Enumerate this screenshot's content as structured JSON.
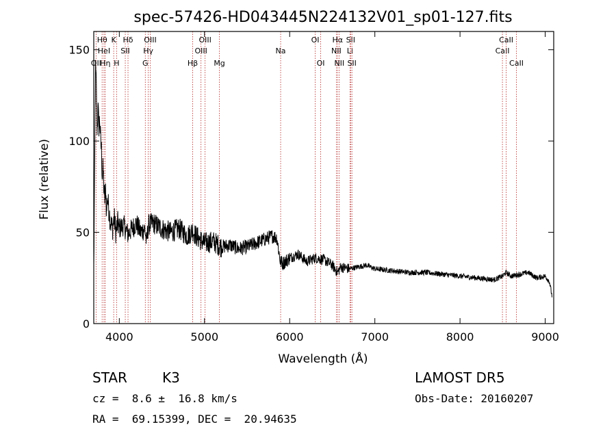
{
  "chart_data": {
    "type": "line",
    "title": "spec-57426-HD043445N224132V01_sp01-127.fits",
    "xlabel": "Wavelength (Å)",
    "ylabel": "Flux (relative)",
    "xlim": [
      3700,
      9100
    ],
    "ylim": [
      0,
      160
    ],
    "xticks": [
      4000,
      5000,
      6000,
      7000,
      8000,
      9000
    ],
    "yticks": [
      0,
      50,
      100,
      150
    ],
    "line_color": "#000000",
    "marker_color": "#b22222",
    "series": [
      {
        "x": [
          3700,
          3710,
          3720,
          3730,
          3740,
          3750,
          3760,
          3770,
          3780,
          3790,
          3800,
          3810,
          3820,
          3830,
          3840,
          3850,
          3860,
          3870,
          3880,
          3890,
          3900,
          3920,
          3940,
          3960,
          3980,
          4000,
          4050,
          4100,
          4150,
          4200,
          4250,
          4300,
          4320,
          4340,
          4400,
          4500,
          4600,
          4700,
          4800,
          4861,
          4900,
          5000,
          5100,
          5200,
          5300,
          5400,
          5500,
          5600,
          5700,
          5800,
          5850,
          5890,
          5920,
          6000,
          6100,
          6200,
          6300,
          6400,
          6500,
          6563,
          6600,
          6700,
          6800,
          6900,
          7000,
          7200,
          7400,
          7600,
          7800,
          8000,
          8200,
          8400,
          8500,
          8540,
          8600,
          8700,
          8800,
          8900,
          9000,
          9050,
          9080
        ],
        "y": [
          30,
          80,
          140,
          130,
          105,
          118,
          108,
          112,
          100,
          95,
          80,
          85,
          72,
          68,
          75,
          60,
          70,
          65,
          62,
          58,
          55,
          52,
          58,
          50,
          55,
          52,
          54,
          49,
          52,
          55,
          50,
          52,
          44,
          54,
          55,
          52,
          50,
          52,
          48,
          51,
          48,
          44,
          45,
          42,
          43,
          41,
          42,
          44,
          46,
          48,
          47,
          34,
          33,
          36,
          38,
          34,
          36,
          35,
          32,
          28,
          31,
          30,
          31,
          32,
          30,
          29,
          28,
          28,
          27,
          26,
          25,
          24,
          26,
          28,
          26,
          27,
          28,
          25,
          26,
          23,
          15
        ]
      }
    ],
    "line_markers": [
      {
        "label": "OII",
        "x": 3727,
        "row": 3
      },
      {
        "label": "Hθ",
        "x": 3798,
        "row": 1
      },
      {
        "label": "HeI",
        "x": 3820,
        "row": 2
      },
      {
        "label": "Hη",
        "x": 3835,
        "row": 3
      },
      {
        "label": "K",
        "x": 3934,
        "row": 1
      },
      {
        "label": "H",
        "x": 3968,
        "row": 3
      },
      {
        "label": "SII",
        "x": 4070,
        "row": 2
      },
      {
        "label": "Hδ",
        "x": 4102,
        "row": 1
      },
      {
        "label": "G",
        "x": 4305,
        "row": 3
      },
      {
        "label": "Hγ",
        "x": 4340,
        "row": 2
      },
      {
        "label": "OIII",
        "x": 4363,
        "row": 1
      },
      {
        "label": "Hβ",
        "x": 4861,
        "row": 3
      },
      {
        "label": "OIII",
        "x": 4959,
        "row": 2
      },
      {
        "label": "OIII",
        "x": 5007,
        "row": 1
      },
      {
        "label": "Mg",
        "x": 5175,
        "row": 3
      },
      {
        "label": "Na",
        "x": 5894,
        "row": 2
      },
      {
        "label": "OI",
        "x": 6300,
        "row": 1
      },
      {
        "label": "OI",
        "x": 6364,
        "row": 3
      },
      {
        "label": "NII",
        "x": 6548,
        "row": 2
      },
      {
        "label": "Hα",
        "x": 6563,
        "row": 1
      },
      {
        "label": "NII",
        "x": 6583,
        "row": 3
      },
      {
        "label": "Li",
        "x": 6708,
        "row": 2
      },
      {
        "label": "SII",
        "x": 6716,
        "row": 1
      },
      {
        "label": "SII",
        "x": 6731,
        "row": 3
      },
      {
        "label": "CaII",
        "x": 8498,
        "row": 2
      },
      {
        "label": "CaII",
        "x": 8542,
        "row": 1
      },
      {
        "label": "CaII",
        "x": 8662,
        "row": 3
      }
    ]
  },
  "info": {
    "object_class": "STAR",
    "subclass": "K3",
    "survey": "LAMOST DR5",
    "redshift": "cz =  8.6 ±  16.8 km/s",
    "obs_date": "Obs-Date: 20160207",
    "coordinates": "RA =  69.15399, DEC =  20.94635"
  }
}
